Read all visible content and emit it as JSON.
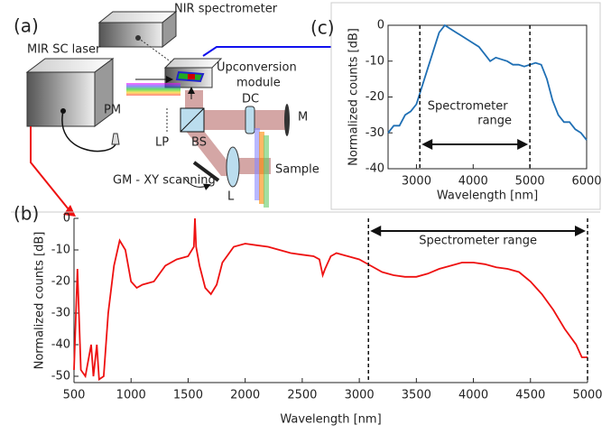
{
  "panel_labels": {
    "a": "(a)",
    "b": "(b)",
    "c": "(c)"
  },
  "diagram": {
    "nir_spectrometer": "NIR spectrometer",
    "mir_laser": "MIR SC laser",
    "upconversion": [
      "Upconversion",
      "module"
    ],
    "pm": "PM",
    "lp": "LP",
    "bs": "BS",
    "dc": "DC",
    "m": "M",
    "sample": "Sample",
    "l": "L",
    "gm": "GM - XY scanning"
  },
  "chart_data": [
    {
      "type": "line",
      "xlabel": "Wavelength [nm]",
      "ylabel": "Normalized counts [dB]",
      "xlim": [
        500,
        5000
      ],
      "xticks": [
        500,
        1000,
        1500,
        2000,
        2500,
        3000,
        3500,
        4000,
        4500,
        5000
      ],
      "ylim": [
        -52,
        0
      ],
      "yticks": [
        0,
        -10,
        -20,
        -30,
        -40,
        -50
      ],
      "x": [
        500,
        530,
        560,
        600,
        650,
        670,
        700,
        720,
        760,
        800,
        850,
        900,
        950,
        1000,
        1050,
        1100,
        1200,
        1300,
        1400,
        1500,
        1550,
        1560,
        1570,
        1600,
        1650,
        1700,
        1750,
        1800,
        1900,
        2000,
        2100,
        2200,
        2300,
        2400,
        2500,
        2600,
        2650,
        2680,
        2700,
        2750,
        2800,
        2900,
        3000,
        3100,
        3200,
        3300,
        3400,
        3500,
        3600,
        3700,
        3800,
        3900,
        4000,
        4100,
        4200,
        4300,
        4400,
        4500,
        4600,
        4700,
        4800,
        4900,
        4950,
        5000
      ],
      "series": [
        {
          "color": "#ee1111",
          "values": [
            -48,
            -16,
            -48,
            -50,
            -40,
            -50,
            -40,
            -51,
            -50,
            -30,
            -15,
            -7,
            -10,
            -20,
            -22,
            -21,
            -20,
            -15,
            -13,
            -12,
            -9,
            0,
            -9,
            -15,
            -22,
            -24,
            -21,
            -14,
            -9,
            -8,
            -8.5,
            -9,
            -10,
            -11,
            -11.5,
            -12,
            -13,
            -18,
            -16,
            -12,
            -11,
            -12,
            -13,
            -15,
            -17,
            -18,
            -18.5,
            -18.5,
            -17.5,
            -16,
            -15,
            -14,
            -14,
            -14.5,
            -15.5,
            -16,
            -17,
            -20,
            -24,
            -29,
            -35,
            -40,
            -44,
            -44
          ]
        }
      ],
      "vlines": [
        3080,
        5000
      ],
      "annotation": [
        "Spectrometer range"
      ]
    },
    {
      "type": "line",
      "xlabel": "Wavelength [nm]",
      "ylabel": "Normalized counts [dB]",
      "xlim": [
        2500,
        6000
      ],
      "xticks": [
        3000,
        4000,
        5000,
        6000
      ],
      "ylim": [
        -40,
        0
      ],
      "yticks": [
        0,
        -10,
        -20,
        -30,
        -40
      ],
      "x": [
        2500,
        2600,
        2700,
        2800,
        2900,
        3000,
        3100,
        3200,
        3300,
        3400,
        3500,
        3600,
        3700,
        3800,
        3900,
        4000,
        4100,
        4200,
        4300,
        4400,
        4500,
        4600,
        4700,
        4800,
        4900,
        5000,
        5100,
        5200,
        5300,
        5400,
        5500,
        5600,
        5700,
        5800,
        5900,
        6000
      ],
      "series": [
        {
          "color": "#1f6fb4",
          "values": [
            -30,
            -28,
            -28,
            -25,
            -24,
            -22,
            -17,
            -12,
            -7,
            -2,
            0,
            -1,
            -2,
            -3,
            -4,
            -5,
            -6,
            -8,
            -10,
            -9,
            -9.5,
            -10,
            -11,
            -11,
            -11.5,
            -11,
            -10.5,
            -11,
            -15,
            -21,
            -25,
            -27,
            -27,
            -29,
            -30,
            -32
          ]
        }
      ],
      "vlines": [
        3060,
        5000
      ],
      "annotation": [
        "Spectrometer",
        "range"
      ]
    }
  ]
}
